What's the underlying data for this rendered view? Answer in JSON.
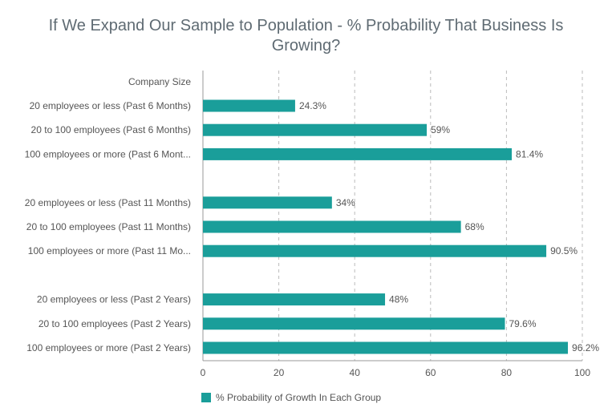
{
  "chart_data": {
    "type": "bar",
    "orientation": "horizontal",
    "title_line1": "If We Expand Our Sample to Population - % Probability That Business Is",
    "title_line2": "Growing?",
    "group_header": "Company Size",
    "groups": [
      {
        "categories": [
          "20 employees or less (Past 6 Months)",
          "20 to 100 employees (Past 6 Months)",
          "100 employees or more (Past 6 Mont..."
        ],
        "values": [
          24.3,
          59,
          81.4
        ],
        "labels": [
          "24.3%",
          "59%",
          "81.4%"
        ]
      },
      {
        "categories": [
          "20 employees or less (Past 11 Months)",
          "20 to 100 employees (Past 11 Months)",
          "100 employees or more (Past 11 Mo..."
        ],
        "values": [
          34,
          68,
          90.5
        ],
        "labels": [
          "34%",
          "68%",
          "90.5%"
        ]
      },
      {
        "categories": [
          "20 employees or less (Past 2 Years)",
          "20 to 100 employees (Past 2 Years)",
          "100 employees or more (Past 2 Years)"
        ],
        "values": [
          48,
          79.6,
          96.2
        ],
        "labels": [
          "48%",
          "79.6%",
          "96.2%"
        ]
      }
    ],
    "series": [
      {
        "name": "% Probability of Growth In Each Group"
      }
    ],
    "xlim": [
      0,
      100
    ],
    "xticks": [
      0,
      20,
      40,
      60,
      80,
      100
    ],
    "grid": true,
    "legend_position": "bottom-left",
    "bar_color": "#1a9e9a"
  }
}
